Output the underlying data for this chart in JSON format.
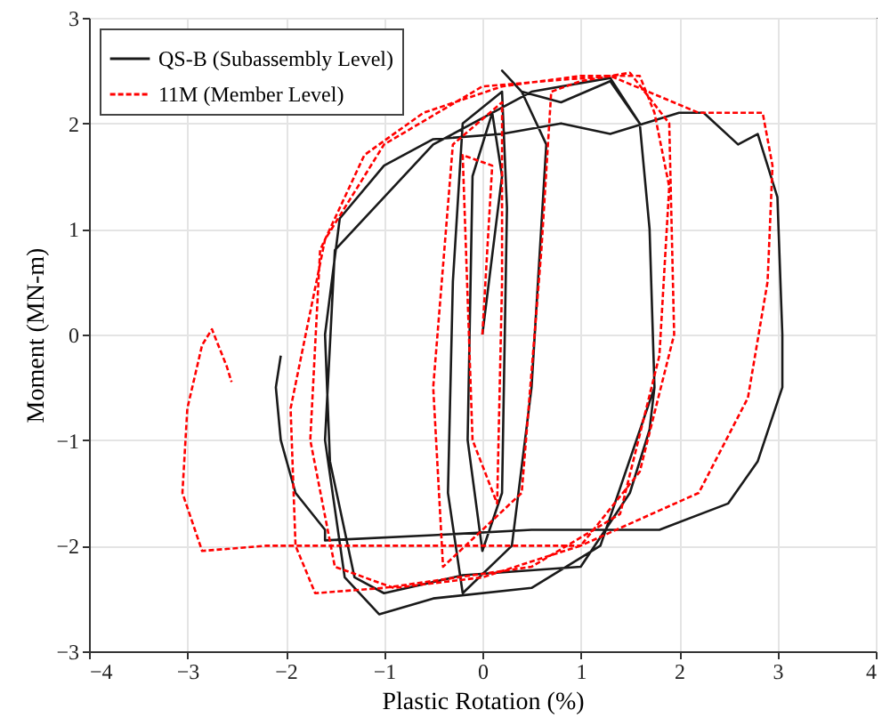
{
  "chart_data": {
    "type": "line",
    "xlabel": "Plastic Rotation (%)",
    "ylabel": "Moment (MN-m)",
    "xlim": [
      -4,
      4
    ],
    "ylim": [
      -3,
      3
    ],
    "xticks": [
      -4,
      -3,
      -2,
      -1,
      0,
      1,
      2,
      3,
      4
    ],
    "yticks": [
      -3,
      -2,
      -1,
      0,
      1,
      2,
      3
    ],
    "grid": true,
    "legend": "top left",
    "marker": "none",
    "series": [
      {
        "name": "QS-B (Subassembly Level)",
        "color": "#1a1a1a",
        "line_style": "solid",
        "x": [
          0,
          0.2,
          0.1,
          -0.1,
          -0.15,
          0,
          0.2,
          0.25,
          0.2,
          -0.2,
          -0.3,
          -0.35,
          -0.2,
          0.3,
          0.5,
          0.65,
          0.4,
          0.2,
          0.4,
          0.8,
          1.3,
          1.6,
          1.7,
          1.75,
          1.2,
          0.5,
          -0.5,
          -1.05,
          -1.4,
          -1.6,
          -1.5,
          -0.5,
          0.5,
          1.3,
          1.6,
          1.7,
          1.75,
          1.7,
          1.5,
          1.0,
          -0.2,
          -1.0,
          -1.3,
          -1.55,
          -1.6,
          -1.45,
          -1.0,
          -0.5,
          0.2,
          0.8,
          1.3,
          2.0,
          2.25,
          2.6,
          2.8,
          3.0,
          3.05,
          3.05,
          2.8,
          2.5,
          1.8,
          0.5,
          -0.5,
          -1.6,
          -1.6,
          -1.9,
          -2.05,
          -2.1,
          -2.05
        ],
        "values": [
          0,
          1.5,
          2.1,
          1.5,
          -1.0,
          -2.05,
          -1.5,
          1.2,
          2.3,
          2.0,
          0.5,
          -1.5,
          -2.45,
          -2.0,
          -0.5,
          1.8,
          2.3,
          2.5,
          2.3,
          2.2,
          2.4,
          2.0,
          1.0,
          -0.5,
          -2.0,
          -2.4,
          -2.5,
          -2.65,
          -2.3,
          -1.0,
          0.8,
          1.8,
          2.3,
          2.43,
          2.0,
          1.0,
          -0.5,
          -0.9,
          -1.5,
          -2.2,
          -2.28,
          -2.45,
          -2.3,
          -1.2,
          0.0,
          1.1,
          1.6,
          1.85,
          1.9,
          2.0,
          1.9,
          2.1,
          2.1,
          1.8,
          1.9,
          1.3,
          0.0,
          -0.5,
          -1.2,
          -1.6,
          -1.85,
          -1.85,
          -1.9,
          -1.95,
          -1.85,
          -1.5,
          -1.0,
          -0.5,
          -0.2
        ]
      },
      {
        "name": "11M (Member Level)",
        "color": "#ff0000",
        "line_style": "dashed",
        "x": [
          0,
          0.1,
          -0.2,
          -0.1,
          0.15,
          0.2,
          0.2,
          -0.3,
          -0.5,
          -0.4,
          0.4,
          0.6,
          0.7,
          1.0,
          1.5,
          1.9,
          1.95,
          1.6,
          1.0,
          0,
          -0.9,
          -1.5,
          -1.75,
          -1.65,
          -1.2,
          -0.6,
          0.2,
          1.0,
          1.6,
          1.75,
          1.9,
          1.8,
          1.4,
          0.5,
          -1.0,
          -1.7,
          -1.9,
          -1.95,
          -1.6,
          -1.0,
          0,
          1.3,
          2.2,
          2.85,
          2.95,
          2.9,
          2.7,
          2.2,
          1.0,
          -1.0,
          -2.2,
          -2.85,
          -3.05,
          -3.0,
          -2.85,
          -2.75,
          -2.6,
          -2.55
        ],
        "values": [
          0,
          1.6,
          1.7,
          -1.0,
          -1.6,
          0.5,
          2.2,
          1.8,
          -0.5,
          -2.2,
          -1.5,
          0.8,
          2.3,
          2.4,
          2.48,
          2.0,
          0,
          -1.3,
          -2.0,
          -2.3,
          -2.4,
          -2.2,
          -1.0,
          0.8,
          1.7,
          2.1,
          2.35,
          2.45,
          2.45,
          2.1,
          1.4,
          -0.2,
          -1.7,
          -2.2,
          -2.4,
          -2.45,
          -2.0,
          -0.7,
          0.9,
          1.8,
          2.35,
          2.45,
          2.1,
          2.1,
          1.6,
          0.5,
          -0.6,
          -1.5,
          -2.0,
          -2.0,
          -2.0,
          -2.05,
          -1.5,
          -0.7,
          -0.1,
          0.05,
          -0.3,
          -0.45
        ]
      }
    ]
  }
}
